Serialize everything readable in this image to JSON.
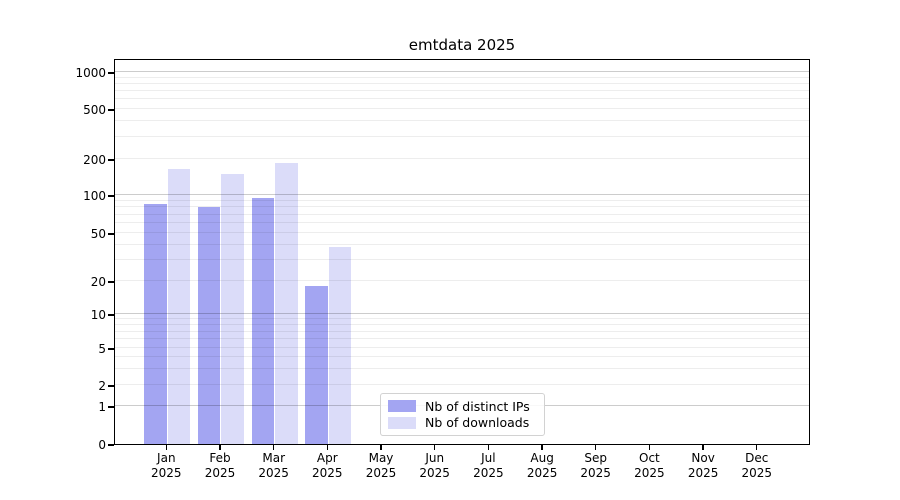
{
  "chart_data": {
    "type": "bar",
    "title": "emtdata 2025",
    "categories": [
      "Jan 2025",
      "Feb 2025",
      "Mar 2025",
      "Apr 2025",
      "May 2025",
      "Jun 2025",
      "Jul 2025",
      "Aug 2025",
      "Sep 2025",
      "Oct 2025",
      "Nov 2025",
      "Dec 2025"
    ],
    "series": [
      {
        "name": "Nb of distinct IPs",
        "color": "#a3a5f2",
        "values": [
          85,
          80,
          95,
          18,
          0,
          0,
          0,
          0,
          0,
          0,
          0,
          0
        ]
      },
      {
        "name": "Nb of downloads",
        "color": "#dbdcf9",
        "values": [
          165,
          150,
          185,
          38,
          0,
          0,
          0,
          0,
          0,
          0,
          0,
          0
        ]
      }
    ],
    "xlabel": "",
    "ylabel": "",
    "yscale": "symlog",
    "ylim": [
      0,
      1300
    ],
    "ytick_labels": [
      "0",
      "1",
      "2",
      "5",
      "10",
      "20",
      "50",
      "100",
      "200",
      "500",
      "1000"
    ],
    "major_gridlines": [
      1,
      10,
      100,
      1000
    ],
    "minor_gridlines": [
      2,
      3,
      4,
      5,
      6,
      7,
      8,
      9,
      20,
      30,
      40,
      50,
      60,
      70,
      80,
      90,
      200,
      300,
      400,
      500,
      600,
      700,
      800,
      900
    ],
    "grid": "horizontal",
    "legend": {
      "entries": [
        "Nb of distinct IPs",
        "Nb of downloads"
      ],
      "location": "lower center"
    },
    "colors": {
      "axis": "#000000",
      "major_grid": "rgba(0,0,0,0.20)",
      "minor_grid": "rgba(0,0,0,0.07)",
      "background": "#ffffff"
    }
  }
}
